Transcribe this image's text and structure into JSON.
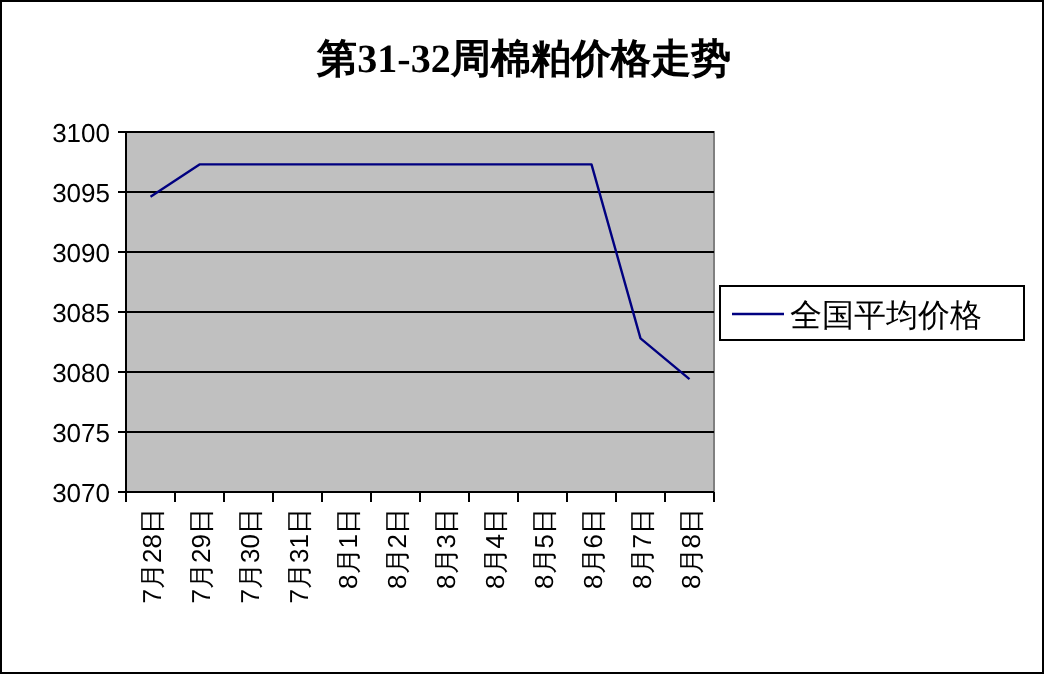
{
  "chart_data": {
    "type": "line",
    "title": "第31-32周棉粕价格走势",
    "categories": [
      "7月28日",
      "7月29日",
      "7月30日",
      "7月31日",
      "8月1日",
      "8月2日",
      "8月3日",
      "8月4日",
      "8月5日",
      "8月6日",
      "8月7日",
      "8月8日"
    ],
    "series": [
      {
        "name": "全国平均价格",
        "color": "#000080",
        "values": [
          3094.6,
          3097.3,
          3097.3,
          3097.3,
          3097.3,
          3097.3,
          3097.3,
          3097.3,
          3097.3,
          3097.3,
          3082.8,
          3079.4
        ]
      }
    ],
    "ylim": [
      3070,
      3100
    ],
    "yticks": [
      3070,
      3075,
      3080,
      3085,
      3090,
      3095,
      3100
    ],
    "grid": "y",
    "legend": "right",
    "marker": "none",
    "line_style": "solid"
  }
}
